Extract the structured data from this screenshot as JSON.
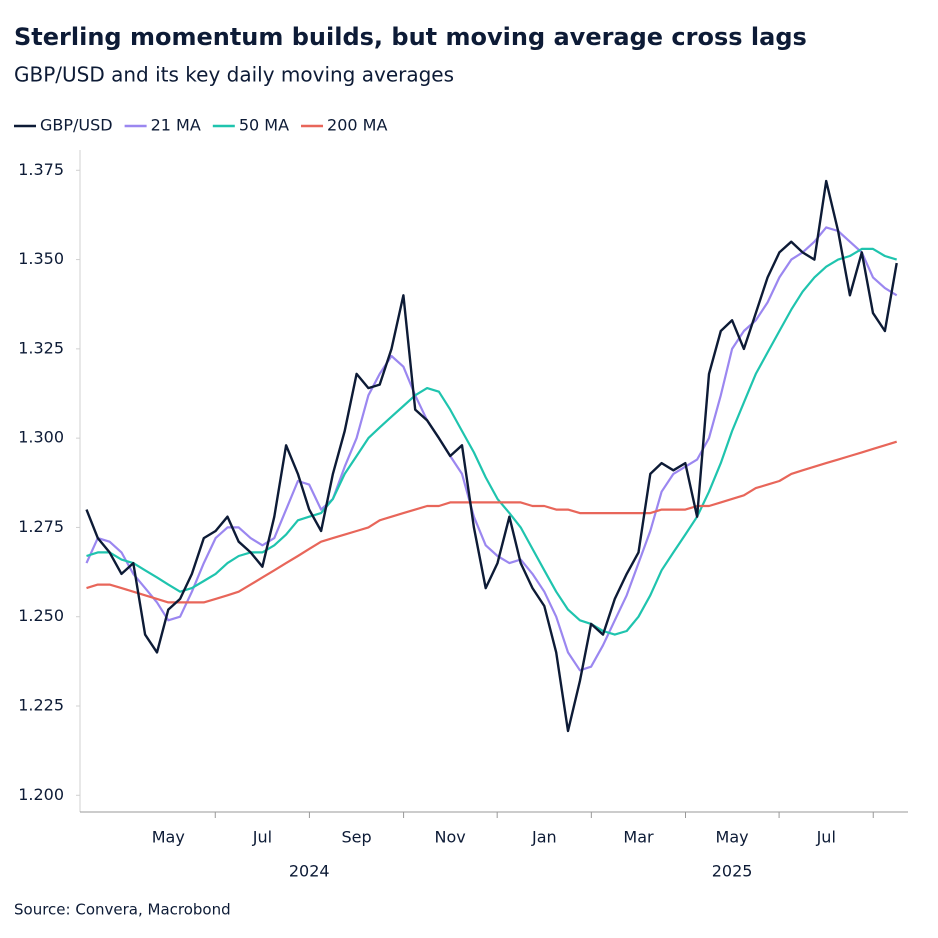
{
  "chart_data": {
    "type": "line",
    "title": "Sterling momentum builds, but moving average cross lags",
    "subtitle": "GBP/USD and its key daily moving averages",
    "source": "Source: Convera, Macrobond",
    "x": [
      2024.188,
      2024.208,
      2024.229,
      2024.25,
      2024.271,
      2024.292,
      2024.313,
      2024.333,
      2024.354,
      2024.375,
      2024.396,
      2024.417,
      2024.438,
      2024.458,
      2024.479,
      2024.5,
      2024.521,
      2024.542,
      2024.563,
      2024.583,
      2024.604,
      2024.625,
      2024.646,
      2024.667,
      2024.688,
      2024.708,
      2024.729,
      2024.75,
      2024.771,
      2024.792,
      2024.813,
      2024.833,
      2024.854,
      2024.875,
      2024.896,
      2024.917,
      2024.938,
      2024.958,
      2024.979,
      2025.0,
      2025.021,
      2025.042,
      2025.063,
      2025.083,
      2025.104,
      2025.125,
      2025.146,
      2025.167,
      2025.188,
      2025.208,
      2025.229,
      2025.25,
      2025.271,
      2025.292,
      2025.313,
      2025.333,
      2025.354,
      2025.375,
      2025.396,
      2025.417,
      2025.438,
      2025.458,
      2025.479,
      2025.5,
      2025.521,
      2025.542,
      2025.563,
      2025.583,
      2025.604,
      2025.625
    ],
    "series": [
      {
        "name": "GBP/USD",
        "color": "#0d1b36",
        "values": [
          1.28,
          1.272,
          1.268,
          1.262,
          1.265,
          1.245,
          1.24,
          1.252,
          1.255,
          1.262,
          1.272,
          1.274,
          1.278,
          1.271,
          1.268,
          1.264,
          1.278,
          1.298,
          1.29,
          1.28,
          1.274,
          1.29,
          1.302,
          1.318,
          1.314,
          1.315,
          1.325,
          1.34,
          1.308,
          1.305,
          1.3,
          1.295,
          1.298,
          1.275,
          1.258,
          1.265,
          1.278,
          1.265,
          1.258,
          1.253,
          1.24,
          1.218,
          1.232,
          1.248,
          1.245,
          1.255,
          1.262,
          1.268,
          1.29,
          1.293,
          1.291,
          1.293,
          1.278,
          1.318,
          1.33,
          1.333,
          1.325,
          1.335,
          1.345,
          1.352,
          1.355,
          1.352,
          1.35,
          1.372,
          1.358,
          1.34,
          1.352,
          1.335,
          1.33,
          1.349
        ]
      },
      {
        "name": "21 MA",
        "color": "#9b87f0",
        "values": [
          1.265,
          1.272,
          1.271,
          1.268,
          1.262,
          1.258,
          1.254,
          1.249,
          1.25,
          1.257,
          1.265,
          1.272,
          1.275,
          1.275,
          1.272,
          1.27,
          1.272,
          1.28,
          1.288,
          1.287,
          1.28,
          1.283,
          1.292,
          1.3,
          1.312,
          1.318,
          1.323,
          1.32,
          1.312,
          1.305,
          1.3,
          1.295,
          1.29,
          1.278,
          1.27,
          1.267,
          1.265,
          1.266,
          1.262,
          1.257,
          1.25,
          1.24,
          1.235,
          1.236,
          1.242,
          1.249,
          1.256,
          1.265,
          1.274,
          1.285,
          1.29,
          1.292,
          1.294,
          1.3,
          1.312,
          1.325,
          1.33,
          1.333,
          1.338,
          1.345,
          1.35,
          1.352,
          1.355,
          1.359,
          1.358,
          1.355,
          1.352,
          1.345,
          1.342,
          1.34
        ]
      },
      {
        "name": "50 MA",
        "color": "#1fc4ae",
        "values": [
          1.267,
          1.268,
          1.268,
          1.266,
          1.265,
          1.263,
          1.261,
          1.259,
          1.257,
          1.258,
          1.26,
          1.262,
          1.265,
          1.267,
          1.268,
          1.268,
          1.27,
          1.273,
          1.277,
          1.278,
          1.279,
          1.283,
          1.29,
          1.295,
          1.3,
          1.303,
          1.306,
          1.309,
          1.312,
          1.314,
          1.313,
          1.308,
          1.302,
          1.296,
          1.289,
          1.283,
          1.279,
          1.275,
          1.269,
          1.263,
          1.257,
          1.252,
          1.249,
          1.248,
          1.246,
          1.245,
          1.246,
          1.25,
          1.256,
          1.263,
          1.268,
          1.273,
          1.278,
          1.285,
          1.293,
          1.302,
          1.31,
          1.318,
          1.324,
          1.33,
          1.336,
          1.341,
          1.345,
          1.348,
          1.35,
          1.351,
          1.353,
          1.353,
          1.351,
          1.35
        ]
      },
      {
        "name": "200 MA",
        "color": "#e8665a",
        "values": [
          1.258,
          1.259,
          1.259,
          1.258,
          1.257,
          1.256,
          1.255,
          1.254,
          1.254,
          1.254,
          1.254,
          1.255,
          1.256,
          1.257,
          1.259,
          1.261,
          1.263,
          1.265,
          1.267,
          1.269,
          1.271,
          1.272,
          1.273,
          1.274,
          1.275,
          1.277,
          1.278,
          1.279,
          1.28,
          1.281,
          1.281,
          1.282,
          1.282,
          1.282,
          1.282,
          1.282,
          1.282,
          1.282,
          1.281,
          1.281,
          1.28,
          1.28,
          1.279,
          1.279,
          1.279,
          1.279,
          1.279,
          1.279,
          1.279,
          1.28,
          1.28,
          1.28,
          1.281,
          1.281,
          1.282,
          1.283,
          1.284,
          1.286,
          1.287,
          1.288,
          1.29,
          1.291,
          1.292,
          1.293,
          1.294,
          1.295,
          1.296,
          1.297,
          1.298,
          1.299
        ]
      }
    ],
    "xlim": [
      2024.18,
      2025.645
    ],
    "xticks": [
      {
        "value": 2024.333,
        "label": "May"
      },
      {
        "value": 2024.5,
        "label": "Jul"
      },
      {
        "value": 2024.667,
        "label": "Sep"
      },
      {
        "value": 2024.833,
        "label": "Nov"
      },
      {
        "value": 2025.0,
        "label": "Jan"
      },
      {
        "value": 2025.167,
        "label": "Mar"
      },
      {
        "value": 2025.333,
        "label": "May"
      },
      {
        "value": 2025.5,
        "label": "Jul"
      }
    ],
    "year_labels": [
      {
        "value": 2024.583,
        "label": "2024"
      },
      {
        "value": 2025.333,
        "label": "2025"
      }
    ],
    "ylim": [
      1.197,
      1.379
    ],
    "yticks": [
      {
        "value": 1.2,
        "label": "1.200"
      },
      {
        "value": 1.225,
        "label": "1.225"
      },
      {
        "value": 1.25,
        "label": "1.250"
      },
      {
        "value": 1.275,
        "label": "1.275"
      },
      {
        "value": 1.3,
        "label": "1.300"
      },
      {
        "value": 1.325,
        "label": "1.325"
      },
      {
        "value": 1.35,
        "label": "1.350"
      },
      {
        "value": 1.375,
        "label": "1.375"
      }
    ],
    "grid": false,
    "legend": "top-left"
  }
}
